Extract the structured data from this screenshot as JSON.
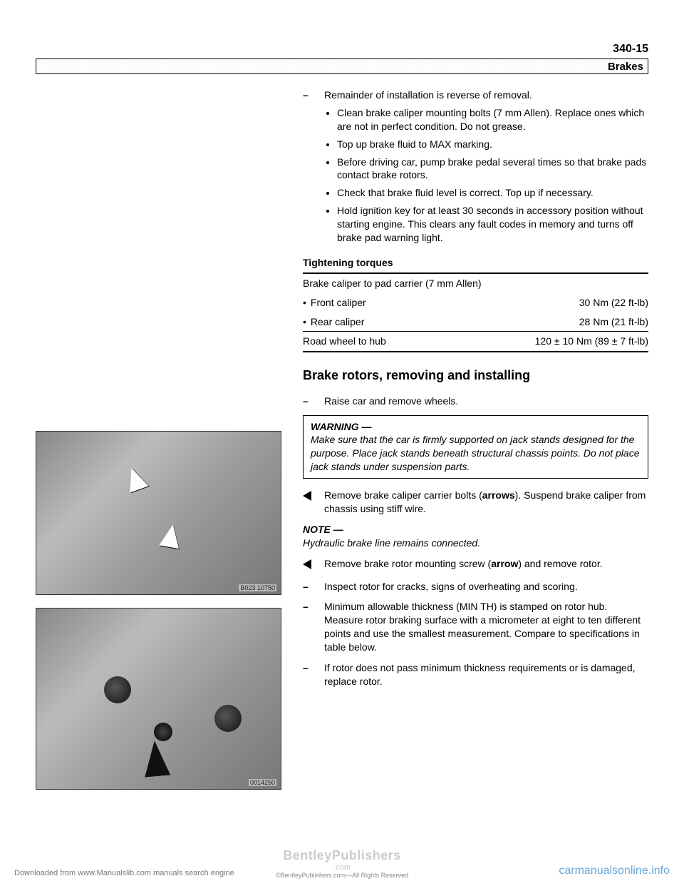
{
  "page_number": "340-15",
  "header_label": "Brakes",
  "remainder": {
    "lead": "Remainder of installation is reverse of removal.",
    "bullets": [
      "Clean brake caliper mounting bolts (7 mm Allen). Replace ones which are not in perfect condition. Do not grease.",
      "Top up brake fluid to MAX marking.",
      "Before driving car, pump brake pedal several times so that brake pads contact brake rotors.",
      "Check that brake fluid level is correct. Top up if necessary.",
      "Hold ignition key for at least 30 seconds in accessory position without starting engine. This clears any fault codes in memory and turns off brake pad warning light."
    ]
  },
  "torque": {
    "heading": "Tightening torques",
    "row1_label": "Brake caliper to pad carrier (7 mm Allen)",
    "front_label": "Front caliper",
    "front_val": "30 Nm (22 ft-lb)",
    "rear_label": "Rear caliper",
    "rear_val": "28 Nm (21 ft-lb)",
    "wheel_label": "Road wheel to hub",
    "wheel_val": "120 ± 10 Nm (89 ± 7 ft-lb)"
  },
  "section_heading": "Brake rotors, removing and installing",
  "raise": "Raise car and remove wheels.",
  "warning": {
    "title": "WARNING —",
    "text": "Make sure that the car is firmly supported on jack stands designed for the purpose. Place jack stands beneath structural chassis points. Do not place jack stands under suspension parts."
  },
  "remove_carrier": "Remove brake caliper carrier bolts (<b>arrows</b>). Suspend brake caliper from chassis using stiff wire.",
  "note": {
    "title": "NOTE —",
    "text": "Hydraulic brake line remains connected."
  },
  "remove_rotor": "Remove brake rotor mounting screw (<b>arrow</b>) and remove rotor.",
  "inspect": "Inspect rotor for cracks, signs of overheating and scoring.",
  "min_th": "Minimum allowable thickness (MIN TH) is stamped on rotor hub. Measure rotor braking surface with a micrometer at eight to ten different points and use the smallest measurement. Compare to specifications in table below.",
  "replace": "If rotor does not pass minimum thickness requirements or is damaged, replace rotor.",
  "img1_id": "B023 10750",
  "img2_id": "0014250",
  "footer": {
    "dl": "Downloaded from www.Manualslib.com manuals search engine",
    "bp": "BentleyPublishers",
    "bp_sub": ".com",
    "rights": "©BentleyPublishers.com—All Rights Reserved",
    "cm": "carmanualsonline.info"
  }
}
